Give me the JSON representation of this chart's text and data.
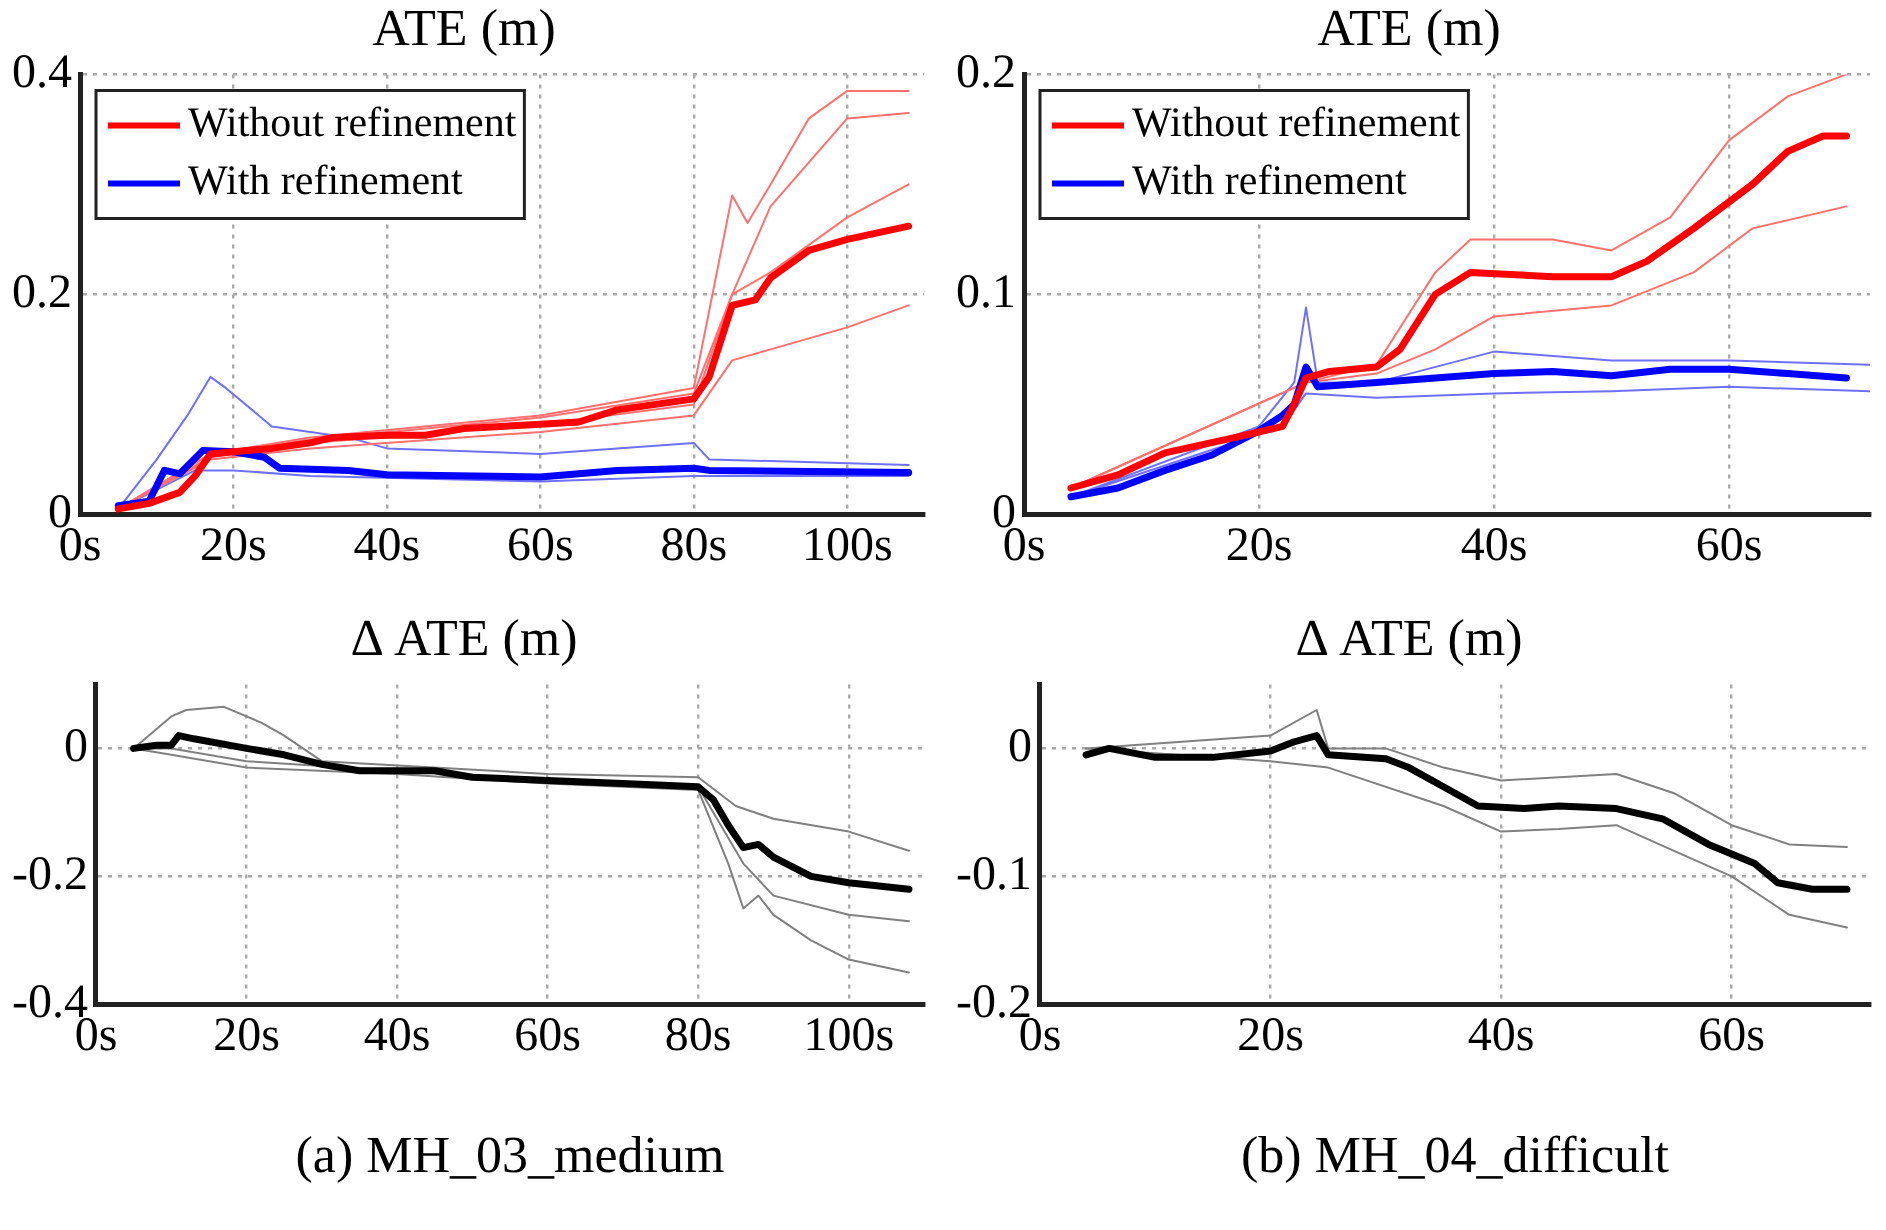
{
  "chart_data": [
    {
      "type": "line",
      "title": "ATE (m)",
      "xlim": [
        0,
        110
      ],
      "ylim": [
        0,
        0.4
      ],
      "xticks": [
        {
          "value": 0,
          "label": "0s"
        },
        {
          "value": 20,
          "label": "20s"
        },
        {
          "value": 40,
          "label": "40s"
        },
        {
          "value": 60,
          "label": "60s"
        },
        {
          "value": 80,
          "label": "80s"
        },
        {
          "value": 100,
          "label": "100s"
        }
      ],
      "yticks": [
        0,
        0.2,
        0.4
      ],
      "grid": true,
      "legend": "top left",
      "marker": "none",
      "line_style": "solid",
      "series": [
        {
          "color": "#ff7070",
          "x": [
            5,
            17,
            30,
            60,
            80,
            85,
            87,
            90,
            95,
            100,
            108
          ],
          "values": [
            0.005,
            0.055,
            0.07,
            0.09,
            0.115,
            0.29,
            0.265,
            0.3,
            0.36,
            0.385,
            0.385
          ]
        },
        {
          "color": "#ff7070",
          "x": [
            5,
            17,
            30,
            60,
            80,
            85,
            90,
            100,
            108
          ],
          "values": [
            0.005,
            0.055,
            0.068,
            0.088,
            0.11,
            0.2,
            0.28,
            0.36,
            0.365
          ]
        },
        {
          "color": "#ff7070",
          "x": [
            5,
            17,
            30,
            60,
            80,
            85,
            90,
            100,
            108
          ],
          "values": [
            0.005,
            0.052,
            0.065,
            0.082,
            0.1,
            0.2,
            0.22,
            0.27,
            0.3
          ]
        },
        {
          "color": "#ff7070",
          "x": [
            5,
            17,
            30,
            60,
            80,
            85,
            90,
            100,
            108
          ],
          "values": [
            0.005,
            0.05,
            0.06,
            0.075,
            0.09,
            0.14,
            0.15,
            0.17,
            0.19
          ]
        },
        {
          "color": "#7070ff",
          "x": [
            5,
            10,
            14,
            17,
            19,
            25,
            35,
            40,
            60,
            80,
            82,
            108
          ],
          "values": [
            0.005,
            0.05,
            0.09,
            0.125,
            0.115,
            0.08,
            0.07,
            0.06,
            0.055,
            0.065,
            0.05,
            0.045
          ]
        },
        {
          "color": "#7070ff",
          "x": [
            5,
            15,
            20,
            30,
            60,
            80,
            108
          ],
          "values": [
            0.005,
            0.04,
            0.04,
            0.035,
            0.03,
            0.035,
            0.035
          ]
        },
        {
          "name": "Without refinement",
          "color": "#ff0000",
          "x": [
            5,
            9,
            13,
            15,
            17,
            20,
            25,
            30,
            33,
            40,
            45,
            50,
            60,
            65,
            70,
            80,
            82,
            85,
            88,
            90,
            95,
            100,
            108
          ],
          "values": [
            0.005,
            0.01,
            0.02,
            0.035,
            0.055,
            0.057,
            0.06,
            0.065,
            0.07,
            0.072,
            0.072,
            0.078,
            0.082,
            0.084,
            0.095,
            0.105,
            0.125,
            0.19,
            0.195,
            0.215,
            0.24,
            0.25,
            0.262
          ]
        },
        {
          "name": "With refinement",
          "color": "#0000ff",
          "x": [
            5,
            9,
            11,
            13,
            16,
            20,
            24,
            26,
            35,
            40,
            60,
            70,
            80,
            82,
            108
          ],
          "values": [
            0.008,
            0.012,
            0.04,
            0.037,
            0.058,
            0.057,
            0.052,
            0.042,
            0.04,
            0.036,
            0.034,
            0.04,
            0.042,
            0.04,
            0.038
          ]
        }
      ]
    },
    {
      "type": "line",
      "title": "ATE (m)",
      "xlim": [
        0,
        72
      ],
      "ylim": [
        0,
        0.2
      ],
      "xticks": [
        {
          "value": 0,
          "label": "0s"
        },
        {
          "value": 20,
          "label": "20s"
        },
        {
          "value": 40,
          "label": "40s"
        },
        {
          "value": 60,
          "label": "60s"
        }
      ],
      "yticks": [
        0,
        0.1,
        0.2
      ],
      "grid": true,
      "legend": "top left",
      "marker": "none",
      "line_style": "solid",
      "series": [
        {
          "color": "#ff7070",
          "x": [
            4,
            24,
            30,
            35,
            38,
            45,
            50,
            55,
            60,
            65,
            70
          ],
          "values": [
            0.012,
            0.06,
            0.068,
            0.11,
            0.125,
            0.125,
            0.12,
            0.135,
            0.17,
            0.19,
            0.2
          ]
        },
        {
          "color": "#ff7070",
          "x": [
            4,
            24,
            30,
            35,
            40,
            50,
            57,
            62,
            70
          ],
          "values": [
            0.012,
            0.06,
            0.064,
            0.075,
            0.09,
            0.095,
            0.11,
            0.13,
            0.14
          ]
        },
        {
          "color": "#7070ff",
          "x": [
            4,
            20,
            23,
            24,
            25,
            30,
            40,
            50,
            60,
            72
          ],
          "values": [
            0.008,
            0.04,
            0.06,
            0.094,
            0.06,
            0.06,
            0.074,
            0.07,
            0.07,
            0.068
          ]
        },
        {
          "color": "#7070ff",
          "x": [
            4,
            22,
            24,
            30,
            40,
            50,
            60,
            72
          ],
          "values": [
            0.008,
            0.04,
            0.055,
            0.053,
            0.055,
            0.056,
            0.058,
            0.056
          ]
        },
        {
          "name": "Without refinement",
          "color": "#ff0000",
          "x": [
            4,
            8,
            12,
            18,
            22,
            23,
            24,
            26,
            30,
            32,
            35,
            38,
            45,
            50,
            53,
            57,
            62,
            65,
            68,
            70
          ],
          "values": [
            0.012,
            0.018,
            0.028,
            0.035,
            0.04,
            0.05,
            0.062,
            0.065,
            0.067,
            0.075,
            0.1,
            0.11,
            0.108,
            0.108,
            0.115,
            0.13,
            0.15,
            0.165,
            0.172,
            0.172
          ]
        },
        {
          "name": "With refinement",
          "color": "#0000ff",
          "x": [
            4,
            8,
            12,
            16,
            20,
            22,
            23,
            24,
            25,
            30,
            35,
            40,
            45,
            50,
            55,
            60,
            65,
            70
          ],
          "values": [
            0.008,
            0.012,
            0.02,
            0.027,
            0.038,
            0.045,
            0.05,
            0.067,
            0.058,
            0.06,
            0.062,
            0.064,
            0.065,
            0.063,
            0.066,
            0.066,
            0.064,
            0.062
          ]
        }
      ]
    },
    {
      "type": "line",
      "title": "Δ ATE (m)",
      "annotations": [
        "(a) MH_03_medium"
      ],
      "xlim": [
        0,
        110
      ],
      "ylim": [
        -0.4,
        0.1
      ],
      "xticks": [
        {
          "value": 0,
          "label": "0s"
        },
        {
          "value": 20,
          "label": "20s"
        },
        {
          "value": 40,
          "label": "40s"
        },
        {
          "value": 60,
          "label": "60s"
        },
        {
          "value": 80,
          "label": "80s"
        },
        {
          "value": 100,
          "label": "100s"
        }
      ],
      "yticks": [
        -0.4,
        -0.2,
        0
      ],
      "grid": true,
      "marker": "none",
      "line_style": "solid",
      "series": [
        {
          "color": "#808080",
          "x": [
            5,
            10,
            12,
            17,
            22,
            25,
            30,
            60,
            80,
            85,
            90,
            100,
            108
          ],
          "values": [
            0,
            0.05,
            0.06,
            0.065,
            0.04,
            0.02,
            -0.02,
            -0.04,
            -0.045,
            -0.09,
            -0.11,
            -0.13,
            -0.16
          ]
        },
        {
          "color": "#808080",
          "x": [
            5,
            10,
            20,
            40,
            60,
            80,
            84,
            86,
            88,
            90,
            95,
            100,
            108
          ],
          "values": [
            0,
            -0.01,
            -0.03,
            -0.04,
            -0.055,
            -0.065,
            -0.18,
            -0.25,
            -0.23,
            -0.26,
            -0.3,
            -0.33,
            -0.35
          ]
        },
        {
          "color": "#808080",
          "x": [
            5,
            10,
            20,
            40,
            60,
            80,
            86,
            90,
            100,
            108
          ],
          "values": [
            0,
            0,
            -0.02,
            -0.035,
            -0.05,
            -0.06,
            -0.18,
            -0.23,
            -0.26,
            -0.27
          ]
        },
        {
          "color": "#000000",
          "x": [
            5,
            8,
            10,
            11,
            13,
            20,
            25,
            30,
            35,
            45,
            50,
            60,
            70,
            80,
            82,
            84,
            86,
            88,
            90,
            95,
            100,
            108
          ],
          "values": [
            0,
            0.005,
            0.005,
            0.02,
            0.015,
            0,
            -0.01,
            -0.025,
            -0.035,
            -0.035,
            -0.045,
            -0.05,
            -0.055,
            -0.06,
            -0.08,
            -0.12,
            -0.155,
            -0.15,
            -0.17,
            -0.2,
            -0.21,
            -0.22
          ]
        }
      ]
    },
    {
      "type": "line",
      "title": "Δ ATE (m)",
      "annotations": [
        "(b) MH_04_difficult"
      ],
      "xlim": [
        0,
        72
      ],
      "ylim": [
        -0.2,
        0.05
      ],
      "xticks": [
        {
          "value": 0,
          "label": "0s"
        },
        {
          "value": 20,
          "label": "20s"
        },
        {
          "value": 40,
          "label": "40s"
        },
        {
          "value": 60,
          "label": "60s"
        }
      ],
      "yticks": [
        -0.2,
        -0.1,
        0
      ],
      "grid": true,
      "marker": "none",
      "line_style": "solid",
      "series": [
        {
          "color": "#808080",
          "x": [
            4,
            20,
            24,
            25,
            30,
            35,
            40,
            50,
            55,
            60,
            65,
            70
          ],
          "values": [
            0,
            0.01,
            0.03,
            0,
            0,
            -0.015,
            -0.025,
            -0.02,
            -0.035,
            -0.06,
            -0.075,
            -0.077
          ]
        },
        {
          "color": "#808080",
          "x": [
            4,
            20,
            25,
            35,
            40,
            45,
            50,
            55,
            60,
            65,
            70
          ],
          "values": [
            0,
            -0.01,
            -0.015,
            -0.045,
            -0.065,
            -0.063,
            -0.06,
            -0.08,
            -0.1,
            -0.13,
            -0.14
          ]
        },
        {
          "color": "#000000",
          "x": [
            4,
            6,
            10,
            15,
            20,
            22,
            24,
            25,
            30,
            32,
            35,
            38,
            42,
            45,
            50,
            54,
            58,
            62,
            64,
            67,
            70
          ],
          "values": [
            -0.005,
            0,
            -0.007,
            -0.007,
            -0.002,
            0.005,
            0.01,
            -0.005,
            -0.008,
            -0.015,
            -0.03,
            -0.045,
            -0.047,
            -0.045,
            -0.047,
            -0.055,
            -0.075,
            -0.09,
            -0.105,
            -0.11,
            -0.11
          ]
        }
      ]
    }
  ]
}
